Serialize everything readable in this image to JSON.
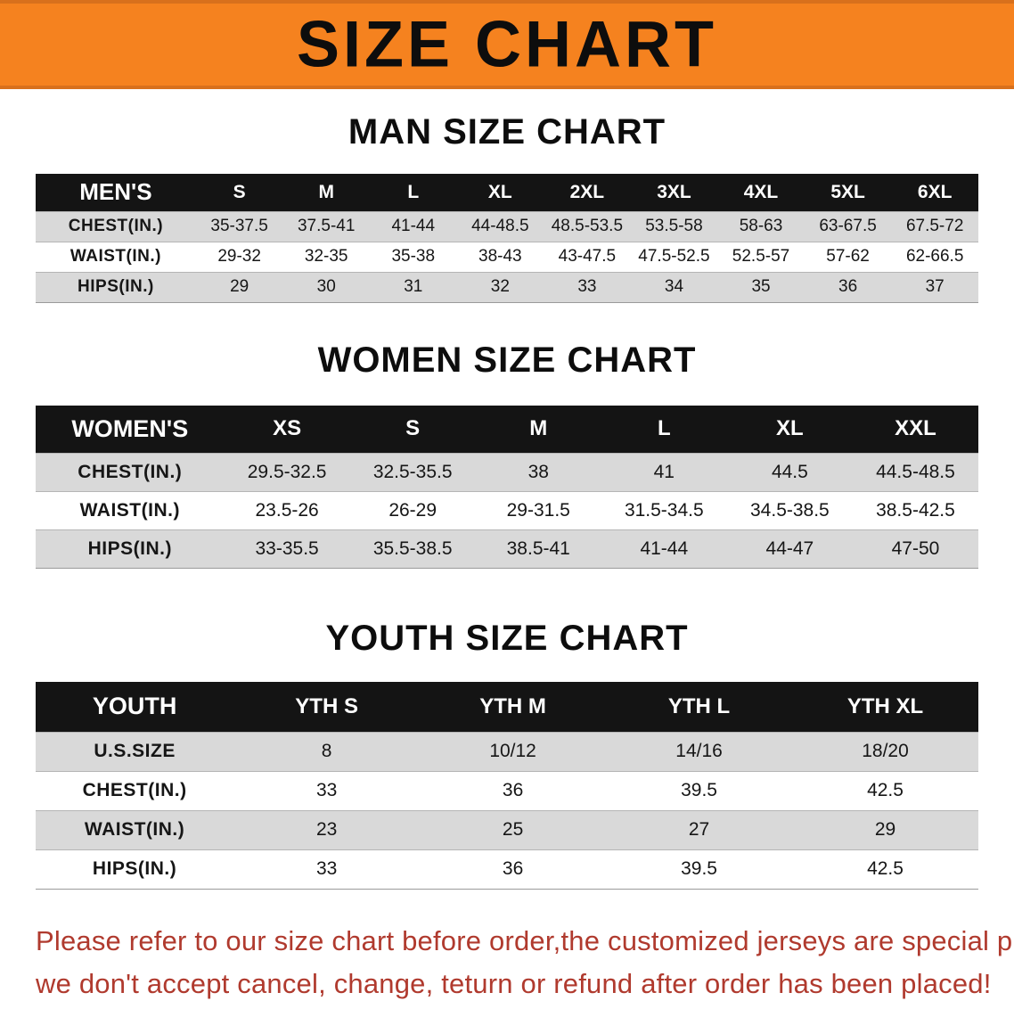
{
  "banner": {
    "title": "SIZE CHART"
  },
  "colors": {
    "accent": "#f5821f",
    "header_bg": "#141414",
    "stripe": "#d9d9d9",
    "warning": "#b03a2e"
  },
  "chart_data": [
    {
      "type": "table",
      "title": "MAN SIZE CHART",
      "columns": [
        "MEN'S",
        "S",
        "M",
        "L",
        "XL",
        "2XL",
        "3XL",
        "4XL",
        "5XL",
        "6XL"
      ],
      "rows": [
        [
          "CHEST(IN.)",
          "35-37.5",
          "37.5-41",
          "41-44",
          "44-48.5",
          "48.5-53.5",
          "53.5-58",
          "58-63",
          "63-67.5",
          "67.5-72"
        ],
        [
          "WAIST(IN.)",
          "29-32",
          "32-35",
          "35-38",
          "38-43",
          "43-47.5",
          "47.5-52.5",
          "52.5-57",
          "57-62",
          "62-66.5"
        ],
        [
          "HIPS(IN.)",
          "29",
          "30",
          "31",
          "32",
          "33",
          "34",
          "35",
          "36",
          "37"
        ]
      ]
    },
    {
      "type": "table",
      "title": "WOMEN SIZE CHART",
      "columns": [
        "WOMEN'S",
        "XS",
        "S",
        "M",
        "L",
        "XL",
        "XXL"
      ],
      "rows": [
        [
          "CHEST(IN.)",
          "29.5-32.5",
          "32.5-35.5",
          "38",
          "41",
          "44.5",
          "44.5-48.5"
        ],
        [
          "WAIST(IN.)",
          "23.5-26",
          "26-29",
          "29-31.5",
          "31.5-34.5",
          "34.5-38.5",
          "38.5-42.5"
        ],
        [
          "HIPS(IN.)",
          "33-35.5",
          "35.5-38.5",
          "38.5-41",
          "41-44",
          "44-47",
          "47-50"
        ]
      ]
    },
    {
      "type": "table",
      "title": "YOUTH SIZE CHART",
      "columns": [
        "YOUTH",
        "YTH S",
        "YTH M",
        "YTH L",
        "YTH XL"
      ],
      "rows": [
        [
          "U.S.SIZE",
          "8",
          "10/12",
          "14/16",
          "18/20"
        ],
        [
          "CHEST(IN.)",
          "33",
          "36",
          "39.5",
          "42.5"
        ],
        [
          "WAIST(IN.)",
          "23",
          "25",
          "27",
          "29"
        ],
        [
          "HIPS(IN.)",
          "33",
          "36",
          "39.5",
          "42.5"
        ]
      ]
    }
  ],
  "footer": {
    "line1": "Please refer to our size chart before order,the customized jerseys are special products,",
    "line2": "we don't accept cancel, change, teturn or refund after order has been placed!"
  }
}
